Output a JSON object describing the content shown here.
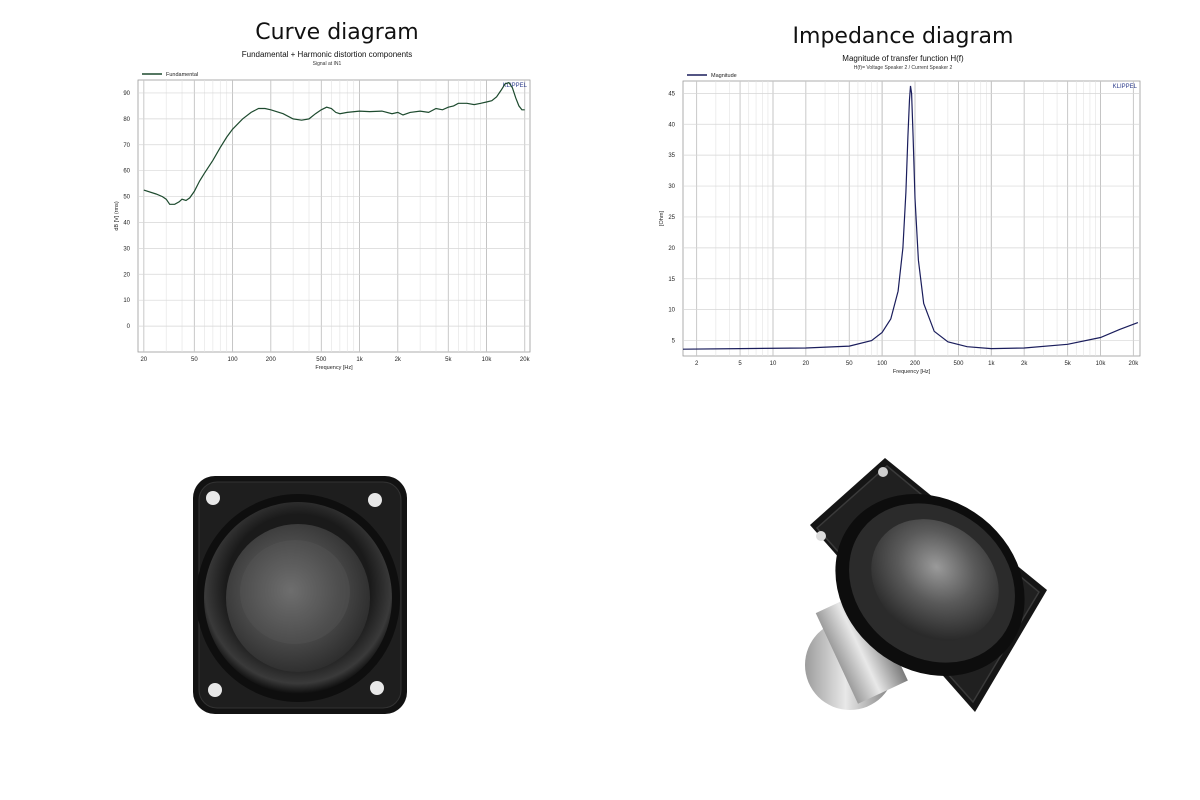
{
  "panels": [
    {
      "title": "Curve diagram"
    },
    {
      "title": "Impedance diagram"
    }
  ],
  "chart_data": [
    {
      "type": "line",
      "title": "Fundamental + Harmonic distortion components",
      "subtitle": "Signal at IN1",
      "xlabel": "Frequency [Hz]",
      "ylabel": "dB [V] (rms)",
      "watermark": "KLIPPEL",
      "xscale": "log",
      "xlim": [
        18,
        22000
      ],
      "ylim": [
        -10,
        95
      ],
      "xticks": [
        {
          "v": 20,
          "label": "20"
        },
        {
          "v": 50,
          "label": "50"
        },
        {
          "v": 100,
          "label": "100"
        },
        {
          "v": 200,
          "label": "200"
        },
        {
          "v": 500,
          "label": "500"
        },
        {
          "v": 1000,
          "label": "1k"
        },
        {
          "v": 2000,
          "label": "2k"
        },
        {
          "v": 5000,
          "label": "5k"
        },
        {
          "v": 10000,
          "label": "10k"
        },
        {
          "v": 20000,
          "label": "20k"
        }
      ],
      "yticks": [
        0,
        10,
        20,
        30,
        40,
        50,
        60,
        70,
        80,
        90
      ],
      "grid": true,
      "legend_position": "top-left",
      "series": [
        {
          "name": "Fundamental",
          "color": "#1d4a2e",
          "points": [
            [
              20,
              52.5
            ],
            [
              25,
              51
            ],
            [
              28,
              50
            ],
            [
              30,
              49
            ],
            [
              32,
              47
            ],
            [
              35,
              47
            ],
            [
              38,
              48
            ],
            [
              40,
              49
            ],
            [
              43,
              48.5
            ],
            [
              46,
              49.5
            ],
            [
              50,
              52
            ],
            [
              55,
              56
            ],
            [
              60,
              59
            ],
            [
              70,
              64
            ],
            [
              80,
              69
            ],
            [
              90,
              73
            ],
            [
              100,
              76
            ],
            [
              120,
              80
            ],
            [
              140,
              82.5
            ],
            [
              160,
              84
            ],
            [
              180,
              84
            ],
            [
              200,
              83.5
            ],
            [
              250,
              82
            ],
            [
              300,
              80
            ],
            [
              350,
              79.5
            ],
            [
              400,
              80
            ],
            [
              450,
              82
            ],
            [
              500,
              83.5
            ],
            [
              550,
              84.5
            ],
            [
              600,
              84
            ],
            [
              650,
              82.5
            ],
            [
              700,
              82
            ],
            [
              800,
              82.5
            ],
            [
              1000,
              83
            ],
            [
              1200,
              82.8
            ],
            [
              1500,
              83
            ],
            [
              1800,
              82
            ],
            [
              2000,
              82.5
            ],
            [
              2200,
              81.5
            ],
            [
              2500,
              82.5
            ],
            [
              3000,
              83
            ],
            [
              3500,
              82.5
            ],
            [
              4000,
              84
            ],
            [
              4500,
              83.5
            ],
            [
              5000,
              84.5
            ],
            [
              5500,
              85
            ],
            [
              6000,
              86
            ],
            [
              7000,
              86
            ],
            [
              8000,
              85.5
            ],
            [
              9000,
              86
            ],
            [
              10000,
              86.5
            ],
            [
              11000,
              87
            ],
            [
              12000,
              88.5
            ],
            [
              13000,
              91
            ],
            [
              14000,
              93.5
            ],
            [
              15000,
              94
            ],
            [
              16000,
              92
            ],
            [
              17000,
              88
            ],
            [
              18000,
              85
            ],
            [
              19000,
              83.5
            ],
            [
              20000,
              83.5
            ]
          ]
        }
      ]
    },
    {
      "type": "line",
      "title": "Magnitude of transfer function H(f)",
      "subtitle": "H(f)= Voltage Speaker 2 / Current Speaker 2",
      "xlabel": "Frequency [Hz]",
      "ylabel": "[Ohm]",
      "watermark": "KLIPPEL",
      "xscale": "log",
      "xlim": [
        1.5,
        23000
      ],
      "ylim": [
        2.5,
        47
      ],
      "xticks": [
        {
          "v": 2,
          "label": "2"
        },
        {
          "v": 5,
          "label": "5"
        },
        {
          "v": 10,
          "label": "10"
        },
        {
          "v": 20,
          "label": "20"
        },
        {
          "v": 50,
          "label": "50"
        },
        {
          "v": 100,
          "label": "100"
        },
        {
          "v": 200,
          "label": "200"
        },
        {
          "v": 500,
          "label": "500"
        },
        {
          "v": 1000,
          "label": "1k"
        },
        {
          "v": 2000,
          "label": "2k"
        },
        {
          "v": 5000,
          "label": "5k"
        },
        {
          "v": 10000,
          "label": "10k"
        },
        {
          "v": 20000,
          "label": "20k"
        }
      ],
      "yticks": [
        5,
        10,
        15,
        20,
        25,
        30,
        35,
        40,
        45
      ],
      "grid": true,
      "legend_position": "top-left",
      "series": [
        {
          "name": "Magnitude",
          "color": "#1a1d5c",
          "points": [
            [
              1.5,
              3.6
            ],
            [
              5,
              3.7
            ],
            [
              20,
              3.8
            ],
            [
              50,
              4.1
            ],
            [
              80,
              5
            ],
            [
              100,
              6.3
            ],
            [
              120,
              8.5
            ],
            [
              140,
              13
            ],
            [
              155,
              20
            ],
            [
              165,
              29
            ],
            [
              172,
              38
            ],
            [
              178,
              44
            ],
            [
              182,
              46.2
            ],
            [
              186,
              45
            ],
            [
              192,
              38
            ],
            [
              200,
              28
            ],
            [
              215,
              18
            ],
            [
              240,
              11
            ],
            [
              300,
              6.5
            ],
            [
              400,
              4.8
            ],
            [
              600,
              4
            ],
            [
              1000,
              3.7
            ],
            [
              2000,
              3.8
            ],
            [
              5000,
              4.4
            ],
            [
              10000,
              5.5
            ],
            [
              15000,
              6.8
            ],
            [
              22000,
              7.9
            ]
          ]
        }
      ]
    }
  ]
}
